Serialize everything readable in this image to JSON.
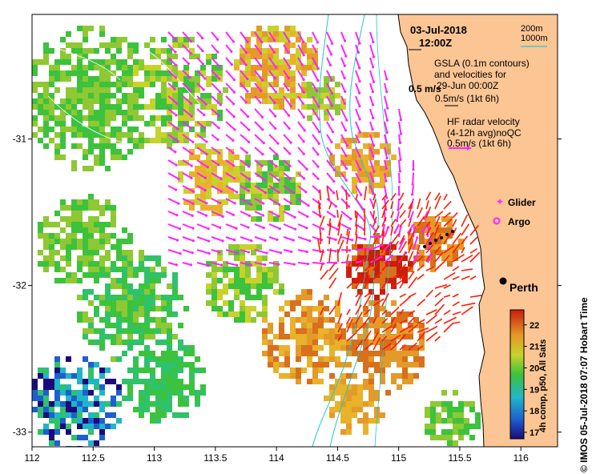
{
  "date": "03-Jul-2018",
  "time": "12:00Z",
  "depth_legend": {
    "shallow": "200m",
    "deep": "1000m",
    "deep_color": "#22c8c8"
  },
  "gsla": {
    "line1": "GSLA (0.1m contours)",
    "line2": "and velocities for",
    "line3": "29-Jun 00:00Z",
    "scale_label": "0.5m/s (1kt 6h)",
    "arrow_label": "0.5 m/s"
  },
  "hf": {
    "line1": "HF radar velocity",
    "line2": "(4-12h avg)noQC",
    "scale_label": "0.5m/s (1kt 6h)"
  },
  "legend": {
    "glider": "Glider",
    "argo": "Argo",
    "marker_color": "#ff22ff"
  },
  "city": "Perth",
  "x_axis": {
    "ticks": [
      "112",
      "112.5",
      "113",
      "113.5",
      "114",
      "114.5",
      "115",
      "115.5",
      "116"
    ],
    "range": [
      112,
      116.3
    ]
  },
  "y_axis": {
    "ticks": [
      "-31",
      "-32",
      "-33"
    ],
    "range": [
      -33.1,
      -30.15
    ]
  },
  "colorbar": {
    "title": "4h comp, p50, All Sats",
    "ticks": [
      "17",
      "18",
      "19",
      "20",
      "21",
      "22"
    ],
    "range": [
      16.7,
      22.7
    ]
  },
  "credit": "© IMOS 05-Jul-2018 07:07 Hobart Time",
  "colors": {
    "land": "#fcc594",
    "hf_arrow": "#ff1a00",
    "gsla_arrow": "#ff22ff"
  }
}
